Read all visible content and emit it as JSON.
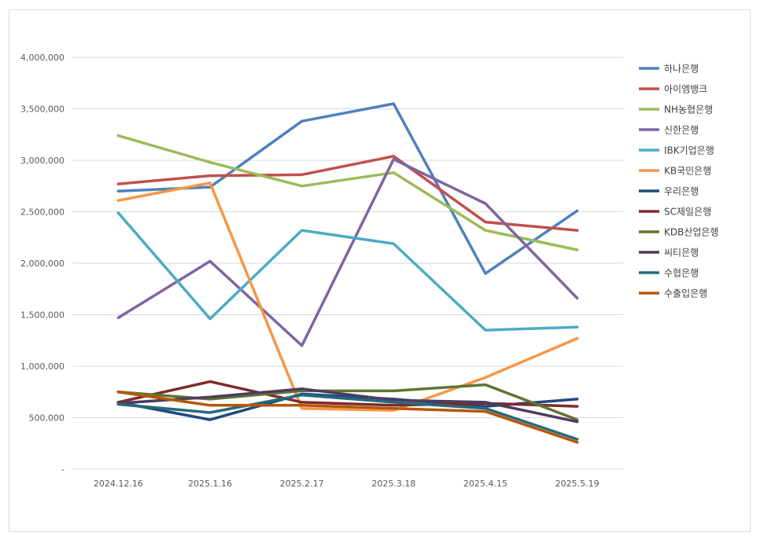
{
  "chart_data": {
    "type": "line",
    "title": "",
    "xlabel": "",
    "ylabel": "",
    "categories": [
      "2024.12.16",
      "2025.1.16",
      "2025.2.17",
      "2025.3.18",
      "2025.4.15",
      "2025.5.19"
    ],
    "ylim": [
      0,
      4000000
    ],
    "y_tick_labels": [
      "-",
      "500,000",
      "1,000,000",
      "1,500,000",
      "2,000,000",
      "2,500,000",
      "3,000,000",
      "3,500,000",
      "4,000,000"
    ],
    "grid": true,
    "legend_position": "right",
    "series": [
      {
        "name": "하나은행",
        "color": "#4f81bd",
        "values": [
          2700000,
          2740000,
          3380000,
          3550000,
          1900000,
          2510000
        ]
      },
      {
        "name": "아이엠뱅크",
        "color": "#c0504d",
        "values": [
          2770000,
          2850000,
          2860000,
          3040000,
          2400000,
          2320000
        ]
      },
      {
        "name": "NH농협은행",
        "color": "#9bbb59",
        "values": [
          3240000,
          2980000,
          2750000,
          2880000,
          2320000,
          2130000
        ]
      },
      {
        "name": "신한은행",
        "color": "#8064a2",
        "values": [
          1470000,
          2020000,
          1200000,
          3010000,
          2580000,
          1660000
        ]
      },
      {
        "name": "IBK기업은행",
        "color": "#4bacc6",
        "values": [
          2490000,
          1460000,
          2320000,
          2190000,
          1350000,
          1380000
        ]
      },
      {
        "name": "KB국민은행",
        "color": "#f79646",
        "values": [
          2610000,
          2780000,
          590000,
          570000,
          890000,
          1270000
        ]
      },
      {
        "name": "우리은행",
        "color": "#1f497d",
        "values": [
          650000,
          480000,
          730000,
          680000,
          610000,
          680000
        ]
      },
      {
        "name": "SC제일은행",
        "color": "#7b2c2a",
        "values": [
          650000,
          850000,
          650000,
          620000,
          640000,
          610000
        ]
      },
      {
        "name": "KDB산업은행",
        "color": "#5f7530",
        "values": [
          750000,
          680000,
          760000,
          760000,
          820000,
          480000
        ]
      },
      {
        "name": "씨티은행",
        "color": "#4e3b62",
        "values": [
          640000,
          700000,
          780000,
          670000,
          650000,
          460000
        ]
      },
      {
        "name": "수협은행",
        "color": "#276a7c",
        "values": [
          630000,
          550000,
          720000,
          650000,
          590000,
          290000
        ]
      },
      {
        "name": "수출입은행",
        "color": "#b65708",
        "values": [
          750000,
          620000,
          620000,
          590000,
          560000,
          260000
        ]
      }
    ]
  }
}
